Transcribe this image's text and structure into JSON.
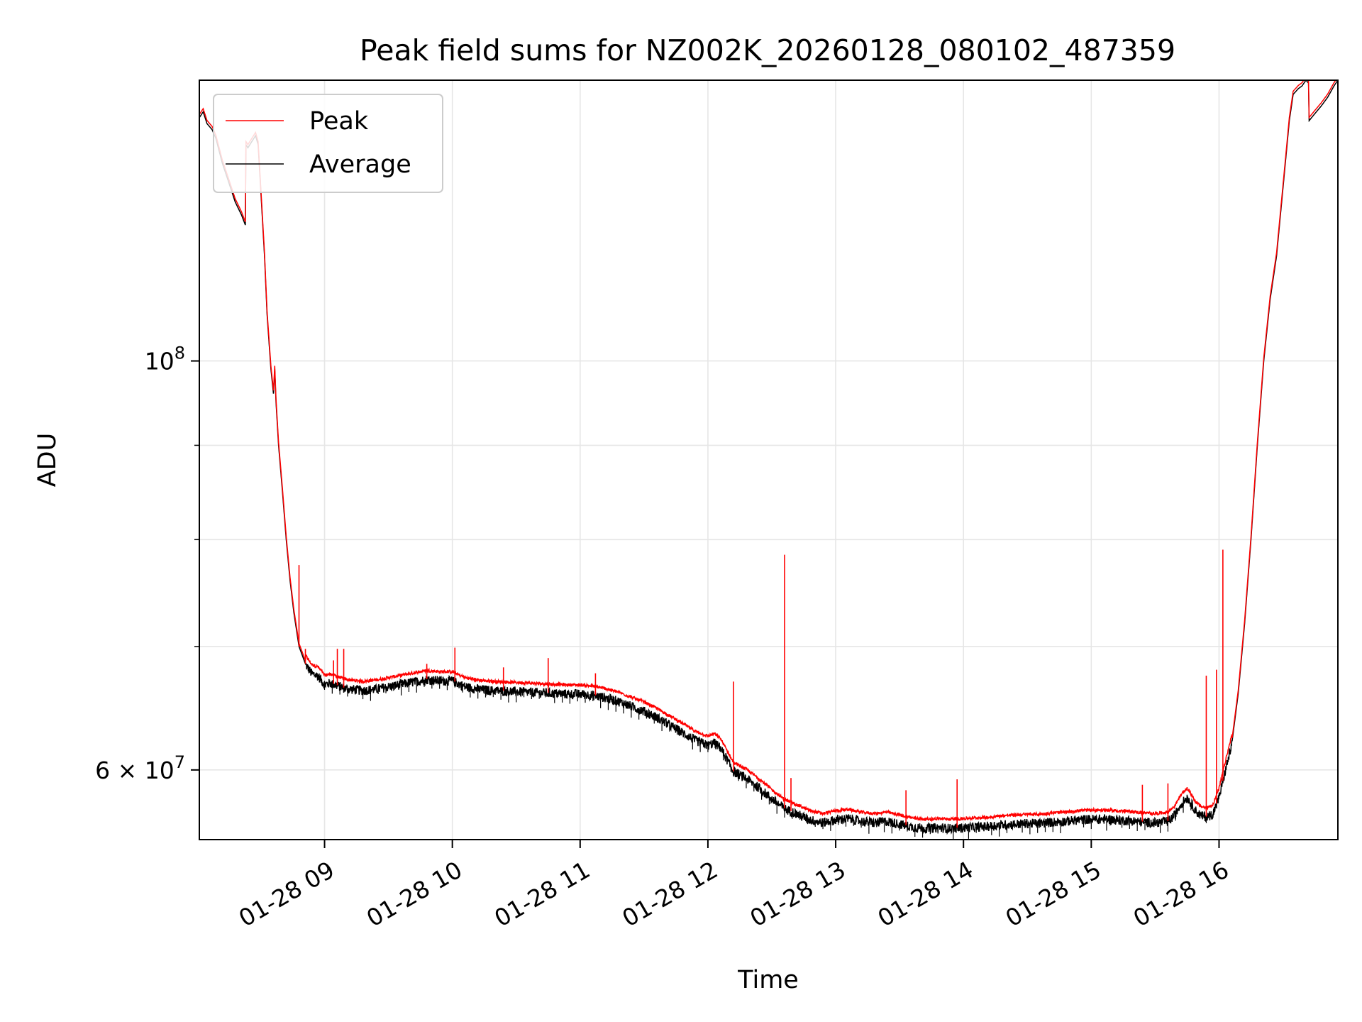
{
  "chart_data": {
    "type": "line",
    "title": "Peak field sums for NZ002K_20260128_080102_487359",
    "xlabel": "Time",
    "ylabel": "ADU",
    "yscale": "log",
    "grid": true,
    "legend_position": "top-left",
    "xlim_hours": [
      8.02,
      16.93
    ],
    "ylim": [
      55000000,
      142000000
    ],
    "x_ticks": [
      {
        "hour": 9,
        "label": "01-28 09"
      },
      {
        "hour": 10,
        "label": "01-28 10"
      },
      {
        "hour": 11,
        "label": "01-28 11"
      },
      {
        "hour": 12,
        "label": "01-28 12"
      },
      {
        "hour": 13,
        "label": "01-28 13"
      },
      {
        "hour": 14,
        "label": "01-28 14"
      },
      {
        "hour": 15,
        "label": "01-28 15"
      },
      {
        "hour": 16,
        "label": "01-28 16"
      }
    ],
    "y_major_ticks": [
      {
        "value": 100000000,
        "base": "10",
        "exp": "8"
      },
      {
        "value": 60000000,
        "base": "6 × 10",
        "exp": "7"
      }
    ],
    "y_minor_ticks": [
      70000000,
      80000000,
      90000000
    ],
    "series": [
      {
        "name": "Average",
        "color": "#000000",
        "points": [
          [
            8.02,
            135500000
          ],
          [
            8.05,
            136500000
          ],
          [
            8.08,
            134500000
          ],
          [
            8.12,
            133500000
          ],
          [
            8.15,
            132000000
          ],
          [
            8.2,
            128000000
          ],
          [
            8.25,
            125000000
          ],
          [
            8.3,
            122000000
          ],
          [
            8.35,
            120000000
          ],
          [
            8.38,
            118500000
          ],
          [
            8.385,
            131000000
          ],
          [
            8.4,
            130500000
          ],
          [
            8.43,
            131500000
          ],
          [
            8.46,
            132500000
          ],
          [
            8.48,
            131000000
          ],
          [
            8.5,
            124000000
          ],
          [
            8.53,
            114000000
          ],
          [
            8.55,
            106000000
          ],
          [
            8.58,
            99000000
          ],
          [
            8.6,
            96000000
          ],
          [
            8.61,
            99000000
          ],
          [
            8.62,
            95000000
          ],
          [
            8.64,
            90000000
          ],
          [
            8.67,
            85000000
          ],
          [
            8.7,
            80000000
          ],
          [
            8.73,
            76000000
          ],
          [
            8.76,
            73000000
          ],
          [
            8.8,
            70000000
          ],
          [
            8.85,
            68500000
          ],
          [
            8.9,
            67700000
          ],
          [
            8.95,
            67500000
          ],
          [
            9.0,
            66800000
          ],
          [
            9.05,
            66900000
          ],
          [
            9.1,
            66700000
          ],
          [
            9.15,
            66500000
          ],
          [
            9.2,
            66400000
          ],
          [
            9.3,
            66300000
          ],
          [
            9.4,
            66400000
          ],
          [
            9.5,
            66600000
          ],
          [
            9.6,
            66800000
          ],
          [
            9.7,
            67000000
          ],
          [
            9.8,
            67200000
          ],
          [
            9.9,
            67100000
          ],
          [
            10.0,
            67100000
          ],
          [
            10.1,
            66600000
          ],
          [
            10.2,
            66400000
          ],
          [
            10.3,
            66300000
          ],
          [
            10.5,
            66200000
          ],
          [
            10.7,
            66100000
          ],
          [
            10.9,
            66000000
          ],
          [
            11.0,
            66000000
          ],
          [
            11.1,
            65900000
          ],
          [
            11.2,
            65700000
          ],
          [
            11.3,
            65400000
          ],
          [
            11.4,
            65000000
          ],
          [
            11.5,
            64600000
          ],
          [
            11.6,
            64100000
          ],
          [
            11.7,
            63500000
          ],
          [
            11.8,
            62900000
          ],
          [
            11.9,
            62300000
          ],
          [
            12.0,
            61900000
          ],
          [
            12.05,
            62100000
          ],
          [
            12.1,
            61700000
          ],
          [
            12.15,
            60800000
          ],
          [
            12.2,
            59900000
          ],
          [
            12.3,
            59400000
          ],
          [
            12.4,
            58700000
          ],
          [
            12.5,
            57900000
          ],
          [
            12.6,
            57200000
          ],
          [
            12.7,
            56800000
          ],
          [
            12.8,
            56400000
          ],
          [
            12.9,
            56200000
          ],
          [
            13.0,
            56400000
          ],
          [
            13.1,
            56500000
          ],
          [
            13.2,
            56300000
          ],
          [
            13.3,
            56200000
          ],
          [
            13.4,
            56300000
          ],
          [
            13.5,
            56100000
          ],
          [
            13.6,
            55900000
          ],
          [
            13.7,
            55800000
          ],
          [
            13.8,
            55850000
          ],
          [
            13.9,
            55800000
          ],
          [
            14.0,
            55850000
          ],
          [
            14.1,
            55900000
          ],
          [
            14.2,
            55950000
          ],
          [
            14.3,
            56050000
          ],
          [
            14.4,
            56100000
          ],
          [
            14.5,
            56150000
          ],
          [
            14.6,
            56150000
          ],
          [
            14.7,
            56250000
          ],
          [
            14.8,
            56300000
          ],
          [
            14.9,
            56400000
          ],
          [
            15.0,
            56450000
          ],
          [
            15.1,
            56450000
          ],
          [
            15.2,
            56400000
          ],
          [
            15.3,
            56350000
          ],
          [
            15.4,
            56250000
          ],
          [
            15.5,
            56200000
          ],
          [
            15.6,
            56300000
          ],
          [
            15.65,
            56700000
          ],
          [
            15.7,
            57500000
          ],
          [
            15.75,
            58000000
          ],
          [
            15.78,
            57600000
          ],
          [
            15.82,
            57000000
          ],
          [
            15.86,
            56700000
          ],
          [
            15.9,
            56600000
          ],
          [
            15.95,
            56800000
          ],
          [
            16.0,
            58000000
          ],
          [
            16.05,
            60000000
          ],
          [
            16.1,
            62000000
          ],
          [
            16.15,
            66000000
          ],
          [
            16.2,
            72000000
          ],
          [
            16.25,
            80000000
          ],
          [
            16.3,
            90000000
          ],
          [
            16.35,
            100000000
          ],
          [
            16.4,
            108000000
          ],
          [
            16.45,
            114000000
          ],
          [
            16.5,
            124000000
          ],
          [
            16.55,
            135000000
          ],
          [
            16.58,
            139500000
          ],
          [
            16.62,
            140500000
          ],
          [
            16.65,
            141000000
          ],
          [
            16.68,
            142000000
          ],
          [
            16.7,
            141500000
          ],
          [
            16.705,
            135000000
          ],
          [
            16.75,
            136200000
          ],
          [
            16.8,
            137500000
          ],
          [
            16.85,
            139000000
          ],
          [
            16.9,
            141000000
          ],
          [
            16.93,
            142000000
          ]
        ]
      },
      {
        "name": "Peak",
        "color": "#ff0000",
        "spikes": [
          [
            8.8,
            77500000
          ],
          [
            8.85,
            69800000
          ],
          [
            9.07,
            68800000
          ],
          [
            9.1,
            69800000
          ],
          [
            9.15,
            69800000
          ],
          [
            9.8,
            68500000
          ],
          [
            10.02,
            69900000
          ],
          [
            10.4,
            68200000
          ],
          [
            10.75,
            69000000
          ],
          [
            11.12,
            67700000
          ],
          [
            12.2,
            67000000
          ],
          [
            12.6,
            78500000
          ],
          [
            12.65,
            59400000
          ],
          [
            13.55,
            58500000
          ],
          [
            13.95,
            59300000
          ],
          [
            15.4,
            58900000
          ],
          [
            15.6,
            59000000
          ],
          [
            15.9,
            67500000
          ],
          [
            15.98,
            68000000
          ],
          [
            16.03,
            79000000
          ]
        ]
      }
    ]
  }
}
